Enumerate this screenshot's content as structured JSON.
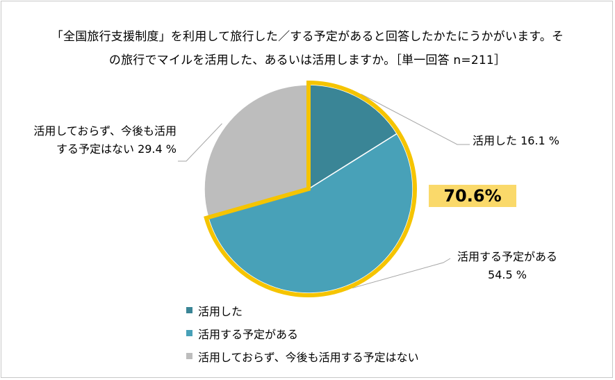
{
  "title_lines": [
    "「全国旅行支援制度」を利用して旅行した／する予定があると回答したかたにうかがいます。そ",
    "の旅行でマイルを活用した、あるいは活用しますか。［単一回答 n=211］"
  ],
  "chart_data": {
    "type": "pie",
    "title": "「全国旅行支援制度」を利用して旅行した／する予定があると回答したかたにうかがいます。その旅行でマイルを活用した、あるいは活用しますか。［単一回答 n=211］",
    "n": 211,
    "slices": [
      {
        "name": "活用した",
        "value": 16.1,
        "color": "#3a8596",
        "label_lines": [
          "活用した 16.1 %"
        ]
      },
      {
        "name": "活用する予定がある",
        "value": 54.5,
        "color": "#48a1b8",
        "label_lines": [
          "活用する予定がある",
          "54.5 %"
        ]
      },
      {
        "name": "活用しておらず、今後も活用する予定はない",
        "value": 29.4,
        "color": "#bdbdbd",
        "label_lines": [
          "活用しておらず、今後も活用",
          "する予定はない 29.4 %"
        ]
      }
    ],
    "highlight": {
      "label": "70.6%",
      "slices": [
        0,
        1
      ],
      "outline_color": "#f5c400",
      "box_color": "#fad96a"
    },
    "legend": [
      "活用した",
      "活用する予定がある",
      "活用しておらず、今後も活用する予定はない"
    ]
  }
}
